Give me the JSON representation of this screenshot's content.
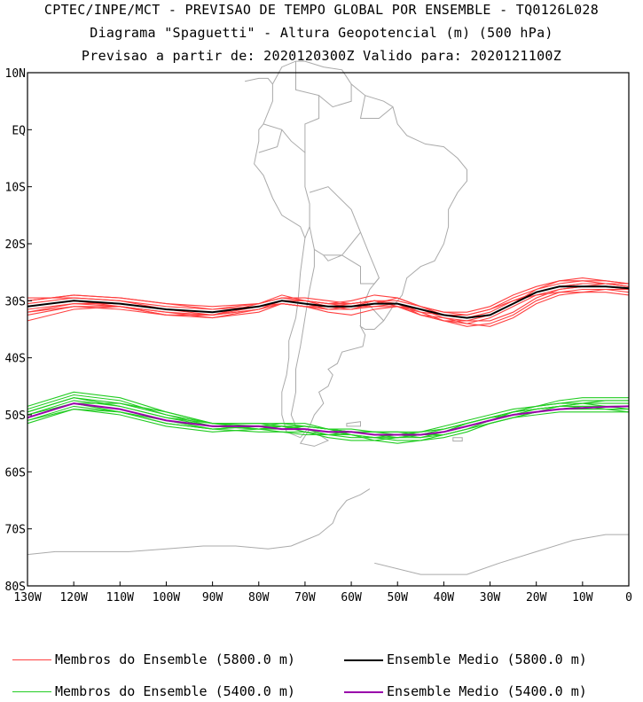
{
  "header": {
    "line1": "CPTEC/INPE/MCT - PREVISAO DE TEMPO GLOBAL POR ENSEMBLE - TQ0126L028",
    "line2": "Diagrama \"Spaguetti\" - Altura Geopotencial (m) (500 hPa)",
    "line3": "Previsao a partir de: 2020120300Z  Valido para: 2020121100Z"
  },
  "legend": [
    {
      "label": "Membros do Ensemble (5800.0 m)",
      "color": "#ff4040"
    },
    {
      "label": "Ensemble Medio (5800.0 m)",
      "color": "#000000"
    },
    {
      "label": "Membros do Ensemble (5400.0 m)",
      "color": "#22cc22"
    },
    {
      "label": "Ensemble Medio (5400.0 m)",
      "color": "#9900aa"
    }
  ],
  "chart_data": {
    "type": "line",
    "xlim": [
      -130,
      0
    ],
    "ylim": [
      -80,
      10
    ],
    "x_ticks": [
      "130W",
      "120W",
      "110W",
      "100W",
      "90W",
      "80W",
      "70W",
      "60W",
      "50W",
      "40W",
      "30W",
      "20W",
      "10W",
      "0"
    ],
    "y_ticks": [
      "10N",
      "EQ",
      "10S",
      "20S",
      "30S",
      "40S",
      "50S",
      "60S",
      "70S",
      "80S"
    ],
    "map": "South America coastlines and country borders",
    "x": [
      -130,
      -120,
      -110,
      -100,
      -90,
      -80,
      -75,
      -70,
      -65,
      -60,
      -55,
      -50,
      -45,
      -40,
      -35,
      -30,
      -25,
      -20,
      -15,
      -10,
      -5,
      0
    ],
    "series": [
      {
        "name": "Ensemble Medio (5800.0 m)",
        "color": "#000000",
        "values": [
          -31.0,
          -30.0,
          -30.5,
          -31.5,
          -32.0,
          -31.0,
          -30.0,
          -30.5,
          -31.0,
          -31.0,
          -30.5,
          -30.5,
          -31.5,
          -32.5,
          -33.0,
          -32.5,
          -30.5,
          -28.5,
          -27.5,
          -27.5,
          -27.5,
          -27.8
        ]
      },
      {
        "name": "Ensemble Medio (5400.0 m)",
        "color": "#9900aa",
        "values": [
          -50.5,
          -48.0,
          -49.0,
          -51.0,
          -52.0,
          -52.0,
          -52.5,
          -52.5,
          -53.0,
          -53.0,
          -53.5,
          -53.5,
          -53.5,
          -53.0,
          -52.0,
          -51.0,
          -50.0,
          -49.5,
          -49.0,
          -48.8,
          -48.6,
          -48.5
        ]
      }
    ],
    "member_groups": [
      {
        "name": "Membros do Ensemble (5800.0 m)",
        "color": "#ff4040",
        "members": [
          [
            -32.5,
            -31.0,
            -31.0,
            -32.5,
            -33.0,
            -31.5,
            -30.0,
            -30.5,
            -31.5,
            -31.5,
            -30.5,
            -30.5,
            -32.5,
            -33.5,
            -34.0,
            -33.0,
            -31.0,
            -29.0,
            -28.0,
            -27.5,
            -27.5,
            -28.0
          ],
          [
            -30.0,
            -29.0,
            -29.5,
            -30.5,
            -31.0,
            -30.5,
            -29.5,
            -30.0,
            -30.5,
            -30.0,
            -29.0,
            -29.5,
            -31.0,
            -32.0,
            -32.5,
            -31.5,
            -29.5,
            -28.0,
            -27.0,
            -26.5,
            -26.5,
            -27.0
          ],
          [
            -31.5,
            -30.5,
            -31.0,
            -32.0,
            -32.5,
            -31.5,
            -30.5,
            -31.0,
            -32.0,
            -32.5,
            -31.5,
            -31.0,
            -32.0,
            -33.5,
            -34.5,
            -34.0,
            -32.5,
            -30.0,
            -28.5,
            -28.0,
            -28.0,
            -28.5
          ],
          [
            -29.5,
            -29.5,
            -30.0,
            -31.0,
            -31.5,
            -30.5,
            -29.5,
            -29.5,
            -30.0,
            -30.5,
            -30.0,
            -30.0,
            -31.0,
            -32.0,
            -32.0,
            -31.0,
            -29.0,
            -27.5,
            -26.5,
            -26.5,
            -27.0,
            -27.5
          ],
          [
            -32.0,
            -30.5,
            -30.5,
            -31.5,
            -32.5,
            -31.5,
            -30.5,
            -31.0,
            -31.0,
            -30.5,
            -30.0,
            -31.0,
            -32.5,
            -33.0,
            -33.5,
            -33.5,
            -32.0,
            -29.5,
            -28.0,
            -27.5,
            -27.0,
            -27.0
          ],
          [
            -30.5,
            -29.5,
            -30.0,
            -31.5,
            -32.0,
            -31.0,
            -30.0,
            -30.0,
            -30.5,
            -31.0,
            -31.0,
            -31.0,
            -31.5,
            -32.5,
            -33.0,
            -32.0,
            -30.0,
            -28.5,
            -27.5,
            -27.0,
            -27.0,
            -27.5
          ],
          [
            -33.5,
            -31.5,
            -31.0,
            -32.0,
            -33.0,
            -32.0,
            -30.5,
            -31.0,
            -31.5,
            -31.5,
            -31.0,
            -30.5,
            -31.5,
            -33.0,
            -34.0,
            -34.5,
            -33.0,
            -30.5,
            -29.0,
            -28.5,
            -28.5,
            -29.0
          ],
          [
            -31.0,
            -30.0,
            -31.0,
            -32.5,
            -32.5,
            -30.5,
            -29.0,
            -30.0,
            -31.0,
            -31.5,
            -30.5,
            -29.5,
            -31.0,
            -32.5,
            -33.0,
            -32.5,
            -30.5,
            -28.5,
            -27.5,
            -27.0,
            -27.0,
            -27.5
          ],
          [
            -30.0,
            -29.0,
            -29.5,
            -30.5,
            -31.5,
            -31.0,
            -30.5,
            -31.0,
            -31.5,
            -31.0,
            -30.0,
            -30.5,
            -32.0,
            -32.5,
            -32.5,
            -31.5,
            -30.0,
            -29.0,
            -28.5,
            -28.5,
            -28.0,
            -28.0
          ],
          [
            -32.0,
            -31.0,
            -31.5,
            -32.5,
            -32.5,
            -31.0,
            -30.0,
            -30.0,
            -30.5,
            -30.5,
            -30.0,
            -31.0,
            -32.5,
            -33.5,
            -33.5,
            -32.5,
            -30.5,
            -28.0,
            -26.5,
            -26.0,
            -26.5,
            -27.0
          ]
        ]
      },
      {
        "name": "Membros do Ensemble (5400.0 m)",
        "color": "#22cc22",
        "members": [
          [
            -50.0,
            -47.5,
            -48.5,
            -50.5,
            -52.0,
            -52.5,
            -52.5,
            -52.0,
            -52.5,
            -53.0,
            -53.5,
            -54.0,
            -54.0,
            -53.0,
            -51.5,
            -50.5,
            -49.5,
            -49.0,
            -48.5,
            -48.0,
            -48.0,
            -48.0
          ],
          [
            -51.0,
            -48.5,
            -49.5,
            -51.5,
            -52.5,
            -52.0,
            -52.0,
            -52.5,
            -53.5,
            -54.0,
            -54.0,
            -53.5,
            -53.0,
            -52.5,
            -51.5,
            -50.5,
            -50.0,
            -49.5,
            -49.0,
            -49.0,
            -49.0,
            -49.0
          ],
          [
            -49.5,
            -47.0,
            -48.0,
            -50.0,
            -51.5,
            -51.5,
            -51.5,
            -52.0,
            -52.5,
            -52.5,
            -53.0,
            -53.5,
            -54.0,
            -53.5,
            -52.5,
            -51.0,
            -49.5,
            -48.5,
            -47.5,
            -47.0,
            -47.0,
            -47.0
          ],
          [
            -51.5,
            -49.0,
            -49.5,
            -51.0,
            -52.5,
            -53.0,
            -53.0,
            -53.0,
            -53.5,
            -53.5,
            -54.0,
            -54.5,
            -54.5,
            -54.0,
            -53.0,
            -51.5,
            -50.5,
            -50.0,
            -49.5,
            -49.5,
            -49.5,
            -49.5
          ],
          [
            -49.0,
            -46.5,
            -47.5,
            -50.0,
            -52.0,
            -52.5,
            -52.0,
            -52.0,
            -52.5,
            -53.0,
            -53.5,
            -53.5,
            -53.0,
            -52.0,
            -51.0,
            -50.0,
            -49.0,
            -48.5,
            -48.0,
            -47.5,
            -47.5,
            -47.5
          ],
          [
            -50.5,
            -48.0,
            -48.0,
            -49.5,
            -51.5,
            -52.5,
            -53.0,
            -53.5,
            -53.5,
            -53.0,
            -53.0,
            -53.0,
            -53.5,
            -53.5,
            -52.5,
            -51.5,
            -50.5,
            -49.5,
            -49.0,
            -48.5,
            -48.5,
            -48.5
          ],
          [
            -48.5,
            -46.0,
            -47.0,
            -49.5,
            -51.5,
            -52.0,
            -52.0,
            -52.5,
            -53.0,
            -53.5,
            -54.0,
            -54.0,
            -53.5,
            -52.5,
            -51.5,
            -50.5,
            -49.5,
            -48.5,
            -48.0,
            -48.0,
            -48.5,
            -49.0
          ],
          [
            -50.0,
            -48.0,
            -49.5,
            -51.5,
            -52.5,
            -52.0,
            -51.5,
            -51.5,
            -52.5,
            -53.5,
            -54.5,
            -55.0,
            -54.5,
            -53.5,
            -52.5,
            -51.5,
            -50.5,
            -49.5,
            -48.5,
            -48.0,
            -47.5,
            -47.5
          ],
          [
            -51.0,
            -49.0,
            -50.0,
            -52.0,
            -53.0,
            -52.5,
            -52.0,
            -52.0,
            -52.5,
            -53.0,
            -53.0,
            -53.0,
            -53.0,
            -52.5,
            -51.5,
            -50.5,
            -49.5,
            -49.0,
            -48.5,
            -48.5,
            -48.5,
            -48.5
          ],
          [
            -49.5,
            -47.0,
            -48.5,
            -50.5,
            -51.5,
            -51.5,
            -52.0,
            -53.0,
            -54.0,
            -54.5,
            -54.5,
            -54.0,
            -53.5,
            -53.0,
            -52.0,
            -51.0,
            -50.0,
            -49.0,
            -48.5,
            -48.5,
            -49.0,
            -49.5
          ]
        ]
      }
    ]
  }
}
